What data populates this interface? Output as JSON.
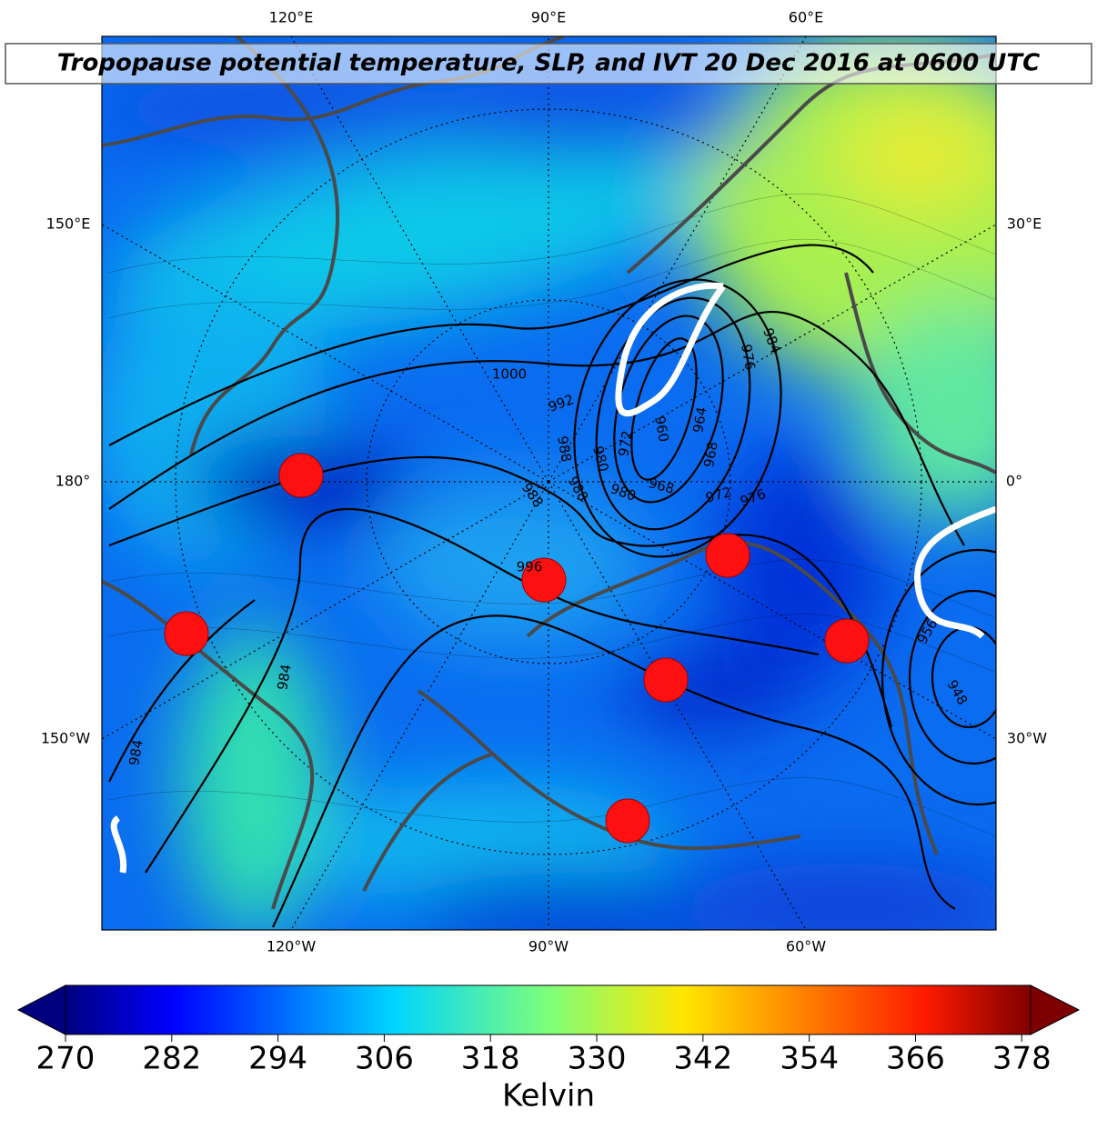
{
  "title": "Tropopause potential temperature, SLP, and IVT 20 Dec 2016 at 0600 UTC",
  "lon_labels": {
    "top": [
      "120°E",
      "90°E",
      "60°E"
    ],
    "bottom": [
      "120°W",
      "90°W",
      "60°W"
    ],
    "left": [
      "150°E",
      "180°",
      "150°W"
    ],
    "right": [
      "30°E",
      "0°",
      "30°W"
    ]
  },
  "contour_labels": [
    1000,
    992,
    988,
    988,
    988,
    980,
    980,
    972,
    960,
    964,
    968,
    968,
    972,
    976,
    976,
    984,
    996,
    984,
    984,
    956,
    948
  ],
  "colorbar": {
    "label": "Kelvin",
    "range": [
      270,
      379
    ],
    "ticks": [
      270,
      282,
      294,
      306,
      318,
      330,
      342,
      354,
      366,
      378
    ]
  }
}
